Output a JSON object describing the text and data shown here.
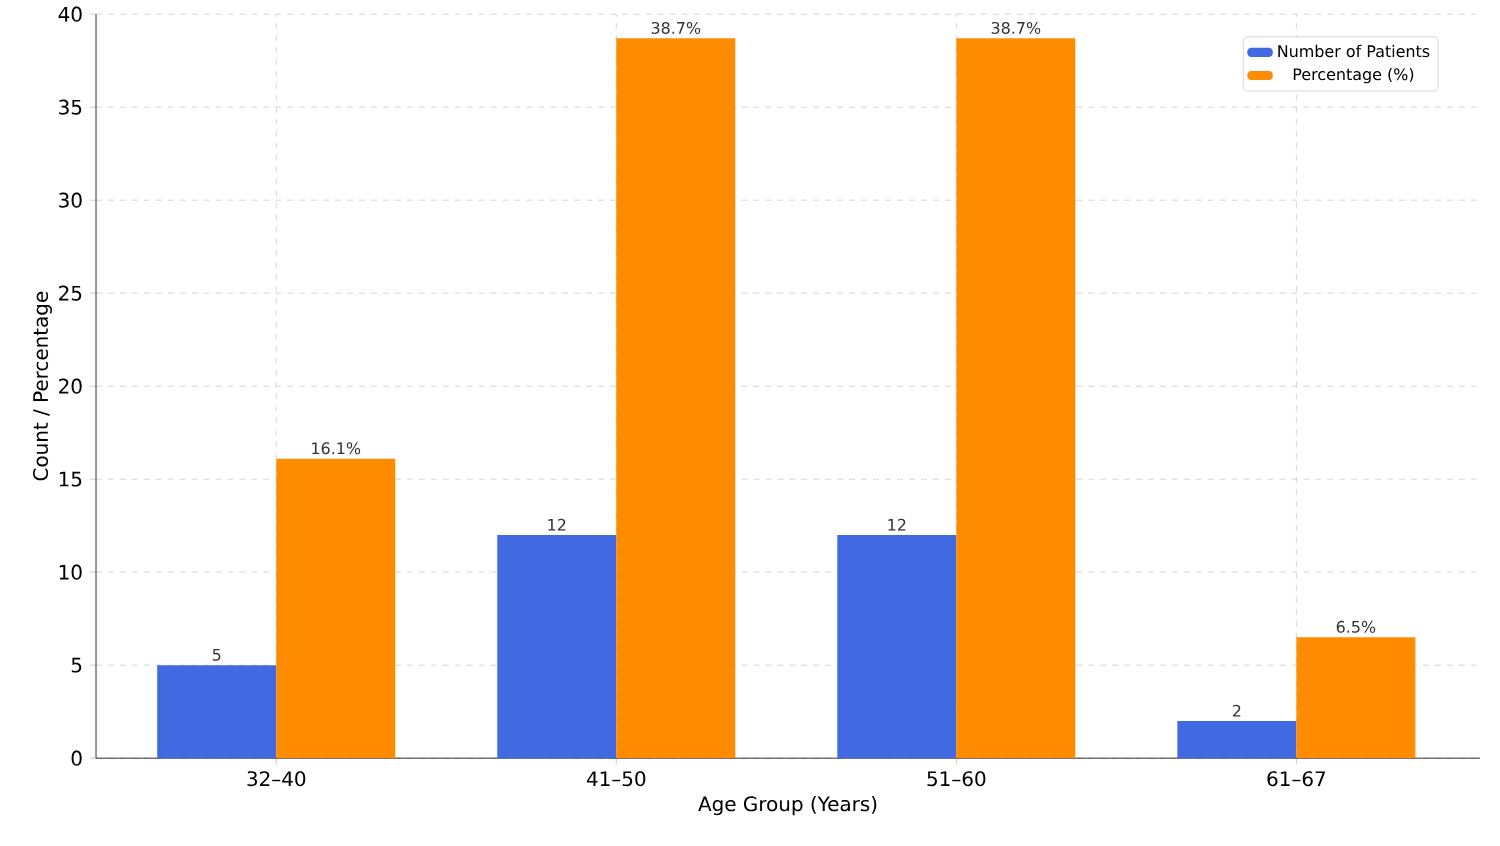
{
  "chart_data": {
    "type": "bar",
    "xlabel": "Age Group (Years)",
    "ylabel": "Count / Percentage",
    "categories": [
      "32–40",
      "41–50",
      "51–60",
      "61–67"
    ],
    "series": [
      {
        "name": "Number of Patients",
        "color": "#4169e1",
        "values": [
          5,
          12,
          12,
          2
        ],
        "value_labels": [
          "5",
          "12",
          "12",
          "2"
        ]
      },
      {
        "name": "Percentage (%)",
        "color": "#ff8c00",
        "values": [
          16.1,
          38.7,
          38.7,
          6.5
        ],
        "value_labels": [
          "16.1%",
          "38.7%",
          "38.7%",
          "6.5%"
        ]
      }
    ],
    "ylim": [
      0,
      40
    ],
    "yticks": [
      0,
      5,
      10,
      15,
      20,
      25,
      30,
      35,
      40
    ],
    "grid": true,
    "legend": "top right"
  }
}
